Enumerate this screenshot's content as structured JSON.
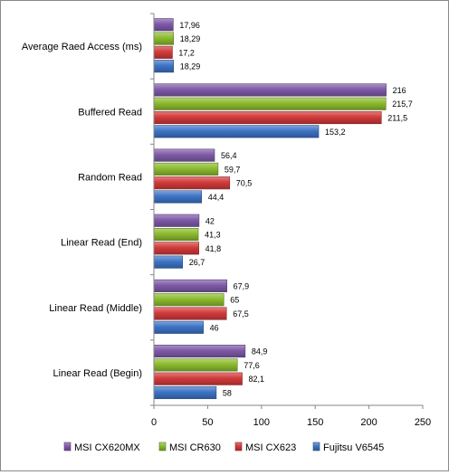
{
  "chart_data": {
    "type": "bar",
    "orientation": "horizontal",
    "categories": [
      "Average Raed Access (ms)",
      "Buffered Read",
      "Random Read",
      "Linear Read (End)",
      "Linear Read (Middle)",
      "Linear Read (Begin)"
    ],
    "series": [
      {
        "name": "MSI CX620MX",
        "color": "#7f5aa8",
        "values": [
          17.96,
          216,
          56.4,
          42,
          67.9,
          84.9
        ],
        "labels": [
          "17,96",
          "216",
          "56,4",
          "42",
          "67,9",
          "84,9"
        ]
      },
      {
        "name": "MSI CR630",
        "color": "#8cbb2e",
        "values": [
          18.29,
          215.7,
          59.7,
          41.3,
          65,
          77.6
        ],
        "labels": [
          "18,29",
          "215,7",
          "59,7",
          "41,3",
          "65",
          "77,6"
        ]
      },
      {
        "name": "MSI CX623",
        "color": "#d23a3a",
        "values": [
          17.2,
          211.5,
          70.5,
          41.8,
          67.5,
          82.1
        ],
        "labels": [
          "17,2",
          "211,5",
          "70,5",
          "41,8",
          "67,5",
          "82,1"
        ]
      },
      {
        "name": "Fujitsu V6545",
        "color": "#3d74c6",
        "values": [
          18.29,
          153.2,
          44.4,
          26.7,
          46,
          58
        ],
        "labels": [
          "18,29",
          "153,2",
          "44,4",
          "26,7",
          "46",
          "58"
        ]
      }
    ],
    "xlim": [
      0,
      250
    ],
    "xticks": [
      0,
      50,
      100,
      150,
      200,
      250
    ],
    "grid": false,
    "legend_position": "bottom",
    "title": "",
    "xlabel": "",
    "ylabel": ""
  }
}
